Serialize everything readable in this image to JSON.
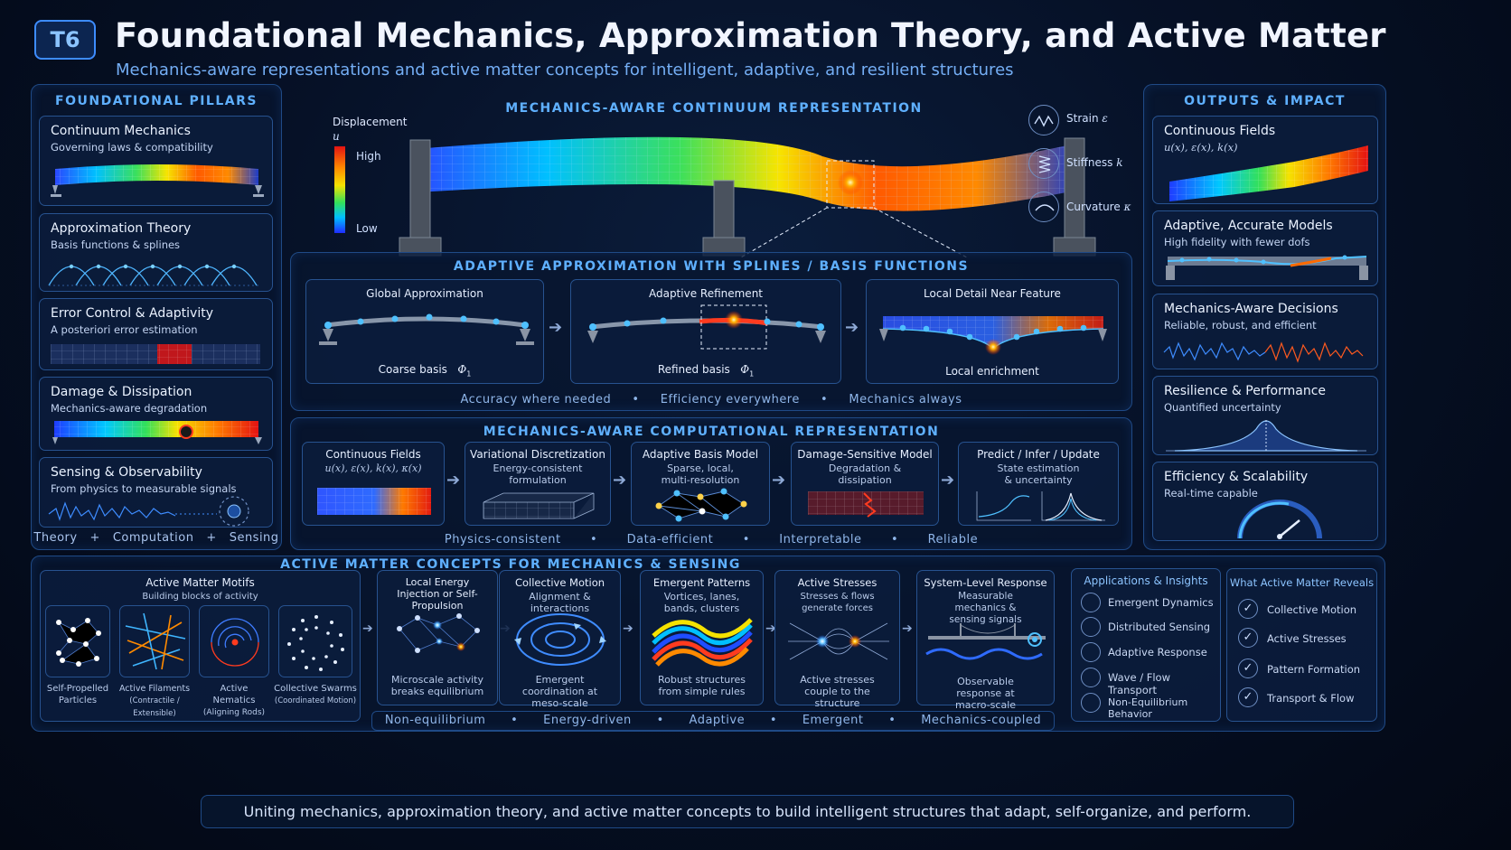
{
  "badge": "T6",
  "title": "Foundational Mechanics, Approximation Theory, and Active Matter",
  "subtitle": "Mechanics-aware representations and active matter concepts for intelligent, adaptive, and resilient structures",
  "pillars": {
    "heading": "FOUNDATIONAL PILLARS",
    "items": [
      {
        "title": "Continuum Mechanics",
        "sub": "Governing laws & compatibility"
      },
      {
        "title": "Approximation Theory",
        "sub": "Basis functions & splines"
      },
      {
        "title": "Error Control & Adaptivity",
        "sub": "A posteriori error estimation"
      },
      {
        "title": "Damage & Dissipation",
        "sub": "Mechanics-aware degradation"
      },
      {
        "title": "Sensing & Observability",
        "sub": "From physics to measurable signals"
      }
    ],
    "footer": [
      "Theory",
      "+",
      "Computation",
      "+",
      "Sensing"
    ]
  },
  "continuum": {
    "heading": "MECHANICS-AWARE CONTINUUM REPRESENTATION",
    "legend_title": "Displacement",
    "legend_var": "u",
    "legend_high": "High",
    "legend_low": "Low",
    "props": [
      {
        "label": "Strain",
        "sym": "ε",
        "icon": "strain-wave-icon"
      },
      {
        "label": "Stiffness",
        "sym": "k",
        "icon": "spring-icon"
      },
      {
        "label": "Curvature",
        "sym": "κ",
        "icon": "curvature-icon"
      }
    ]
  },
  "adaptive": {
    "heading": "ADAPTIVE APPROXIMATION WITH SPLINES / BASIS FUNCTIONS",
    "panels": [
      {
        "title": "Global Approximation",
        "caption": "Coarse basis",
        "sym": "Φ",
        "sub": "1"
      },
      {
        "title": "Adaptive Refinement",
        "caption": "Refined basis",
        "sym": "Φ",
        "sub": "1"
      },
      {
        "title": "Local Detail Near Feature",
        "caption": "Local enrichment"
      }
    ],
    "footer": [
      "Accuracy where needed",
      "•",
      "Efficiency everywhere",
      "•",
      "Mechanics always"
    ]
  },
  "computational": {
    "heading": "MECHANICS-AWARE COMPUTATIONAL REPRESENTATION",
    "steps": [
      {
        "title": "Continuous Fields",
        "sub": "u(x), ε(x), k(x), κ(x)"
      },
      {
        "title": "Variational Discretization",
        "sub": "Energy-consistent formulation"
      },
      {
        "title": "Adaptive Basis Model",
        "sub": "Sparse, local, multi-resolution"
      },
      {
        "title": "Damage-Sensitive Model",
        "sub": "Degradation & dissipation"
      },
      {
        "title": "Predict / Infer / Update",
        "sub": "State estimation & uncertainty"
      }
    ],
    "footer": [
      "Physics-consistent",
      "•",
      "Data-efficient",
      "•",
      "Interpretable",
      "•",
      "Reliable"
    ]
  },
  "outputs": {
    "heading": "OUTPUTS & IMPACT",
    "items": [
      {
        "title": "Continuous Fields",
        "sub": "u(x), ε(x), k(x)"
      },
      {
        "title": "Adaptive, Accurate Models",
        "sub": "High fidelity with fewer dofs"
      },
      {
        "title": "Mechanics-Aware Decisions",
        "sub": "Reliable, robust, and efficient"
      },
      {
        "title": "Resilience & Performance",
        "sub": "Quantified uncertainty"
      },
      {
        "title": "Efficiency & Scalability",
        "sub": "Real-time capable"
      }
    ]
  },
  "active": {
    "heading": "ACTIVE MATTER CONCEPTS FOR MECHANICS & SENSING",
    "motifs_title": "Active Matter Motifs",
    "motifs_sub": "Building blocks of activity",
    "motifs": [
      {
        "label": "Self-Propelled",
        "label2": "Particles"
      },
      {
        "label": "Active Filaments",
        "label2": "(Contractile / Extensible)"
      },
      {
        "label": "Active Nematics",
        "label2": "(Aligning Rods)"
      },
      {
        "label": "Collective Swarms",
        "label2": "(Coordinated Motion)"
      }
    ],
    "stages": [
      {
        "title": "Local Energy Injection or Self-Propulsion",
        "caption": "Microscale activity breaks equilibrium"
      },
      {
        "title": "Collective Motion",
        "sub": "Alignment & interactions",
        "caption": "Emergent coordination at meso-scale"
      },
      {
        "title": "Emergent Patterns",
        "sub": "Vortices, lanes, bands, clusters",
        "caption": "Robust structures from simple rules"
      },
      {
        "title": "Active Stresses",
        "sub": "Stresses & flows generate forces",
        "caption": "Active stresses couple to the structure"
      },
      {
        "title": "System-Level Response",
        "sub": "Measurable mechanics & sensing signals",
        "caption": "Observable response at macro-scale"
      }
    ],
    "footer": [
      "Non-equilibrium",
      "•",
      "Energy-driven",
      "•",
      "Adaptive",
      "•",
      "Emergent",
      "•",
      "Mechanics-coupled"
    ],
    "applications_title": "Applications & Insights",
    "applications": [
      "Emergent Dynamics",
      "Distributed Sensing",
      "Adaptive Response",
      "Wave / Flow Transport",
      "Non-Equilibrium Behavior"
    ],
    "reveals_title": "What Active Matter Reveals",
    "reveals": [
      "Collective Motion",
      "Active Stresses",
      "Pattern Formation",
      "Transport & Flow"
    ]
  },
  "banner": "Uniting mechanics, approximation theory, and active matter concepts to build intelligent structures that adapt, self-organize, and perform.",
  "colors": {
    "accent": "#5fb0ff",
    "panel_border": "#1f4a86",
    "hot": "#ff3b1f",
    "cool": "#1d4dff"
  }
}
